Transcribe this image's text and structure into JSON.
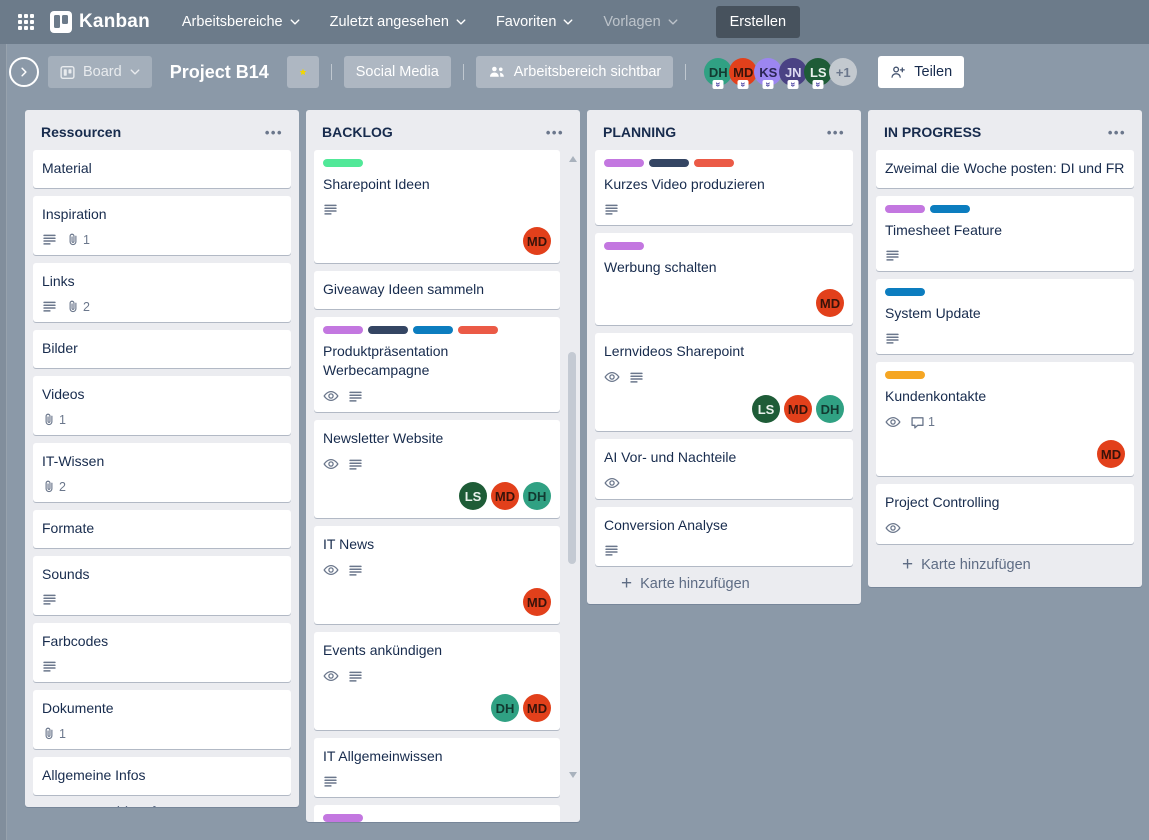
{
  "colors": {
    "navbar": "#6c7b8a",
    "board_bg": "#8b99a8",
    "column_bg": "#ebecf0",
    "create_btn": "#47525d",
    "star": "#f2d600",
    "card_text": "#172b4d",
    "muted_text": "#5e6c84"
  },
  "label_colors": {
    "green": "#51e898",
    "purple": "#c377e0",
    "navy": "#344563",
    "blue": "#0c7dbf",
    "red": "#eb5a46",
    "orange": "#f5a623"
  },
  "member_styles": {
    "DH": {
      "bg": "#30a183",
      "fg": "#123a31"
    },
    "MD": {
      "bg": "#e2401b",
      "fg": "#38130a"
    },
    "KS": {
      "bg": "#9c86f0",
      "fg": "#2b2553"
    },
    "JN": {
      "bg": "#4a4284",
      "fg": "#dcdaf0"
    },
    "LS": {
      "bg": "#1e5c37",
      "fg": "#eaf2ed"
    },
    "+1": {
      "bg": "#c3c9cf",
      "fg": "#6b778c"
    }
  },
  "nav": {
    "logo_text": "Kanban",
    "items": [
      {
        "label": "Arbeitsbereiche",
        "muted": false
      },
      {
        "label": "Zuletzt angesehen",
        "muted": false
      },
      {
        "label": "Favoriten",
        "muted": false
      },
      {
        "label": "Vorlagen",
        "muted": true
      }
    ],
    "create_label": "Erstellen"
  },
  "board_header": {
    "board_button_label": "Board",
    "title": "Project B14",
    "view_buttons": [
      "Social Media",
      "Arbeitsbereich sichtbar"
    ],
    "members": [
      "DH",
      "MD",
      "KS",
      "JN",
      "LS"
    ],
    "overflow_label": "+1",
    "share_label": "Teilen"
  },
  "board": {
    "add_card_label": "Karte hinzufügen",
    "columns": [
      {
        "title": "Ressourcen",
        "scrollbar": false,
        "cards": [
          {
            "title": "Material"
          },
          {
            "title": "Inspiration",
            "desc": true,
            "attachments": 1
          },
          {
            "title": "Links",
            "desc": true,
            "attachments": 2
          },
          {
            "title": "Bilder"
          },
          {
            "title": "Videos",
            "attachments": 1
          },
          {
            "title": "IT-Wissen",
            "attachments": 2
          },
          {
            "title": "Formate"
          },
          {
            "title": "Sounds",
            "desc": true
          },
          {
            "title": "Farbcodes",
            "desc": true
          },
          {
            "title": "Dokumente",
            "attachments": 1
          },
          {
            "title": "Allgemeine Infos"
          }
        ]
      },
      {
        "title": "BACKLOG",
        "scrollbar": true,
        "cards": [
          {
            "title": "Sharepoint Ideen",
            "labels": [
              "green"
            ],
            "desc": true,
            "members": [
              "MD"
            ]
          },
          {
            "title": "Giveaway Ideen sammeln"
          },
          {
            "title": "Produktpräsentation Werbecampagne",
            "labels": [
              "purple",
              "navy",
              "blue",
              "red"
            ],
            "eye": true,
            "desc": true
          },
          {
            "title": "Newsletter Website",
            "eye": true,
            "desc": true,
            "members": [
              "LS",
              "MD",
              "DH"
            ]
          },
          {
            "title": "IT News",
            "eye": true,
            "desc": true,
            "members": [
              "MD"
            ]
          },
          {
            "title": "Events ankündigen",
            "eye": true,
            "desc": true,
            "members": [
              "DH",
              "MD"
            ]
          },
          {
            "title": "IT Allgemeinwissen",
            "desc": true
          },
          {
            "title": "",
            "labels": [
              "purple"
            ],
            "truncated": true
          }
        ]
      },
      {
        "title": "PLANNING",
        "scrollbar": false,
        "cards": [
          {
            "title": "Kurzes Video produzieren",
            "labels": [
              "purple",
              "navy",
              "red"
            ],
            "desc": true
          },
          {
            "title": "Werbung schalten",
            "labels": [
              "purple"
            ],
            "members": [
              "MD"
            ]
          },
          {
            "title": "Lernvideos Sharepoint",
            "eye": true,
            "desc": true,
            "members": [
              "LS",
              "MD",
              "DH"
            ]
          },
          {
            "title": "AI Vor- und Nachteile",
            "eye": true
          },
          {
            "title": "Conversion Analyse",
            "desc": true
          }
        ]
      },
      {
        "title": "IN PROGRESS",
        "scrollbar": false,
        "cards": [
          {
            "title": "Zweimal die Woche posten: DI und FR"
          },
          {
            "title": "Timesheet Feature",
            "labels": [
              "purple",
              "blue"
            ],
            "desc": true
          },
          {
            "title": "System Update",
            "labels": [
              "blue"
            ],
            "desc": true
          },
          {
            "title": "Kundenkontakte",
            "labels": [
              "orange"
            ],
            "eye": true,
            "comments": 1,
            "members": [
              "MD"
            ]
          },
          {
            "title": "Project Controlling",
            "eye": true
          }
        ]
      }
    ]
  }
}
